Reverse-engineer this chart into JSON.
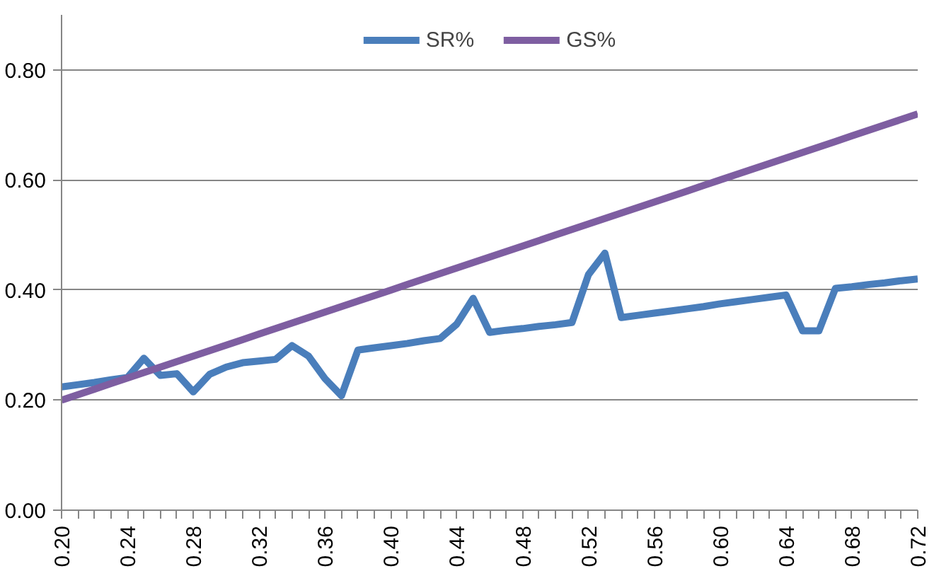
{
  "chart_data": {
    "type": "line",
    "x": [
      0.2,
      0.21,
      0.22,
      0.23,
      0.24,
      0.25,
      0.26,
      0.27,
      0.28,
      0.29,
      0.3,
      0.31,
      0.32,
      0.33,
      0.34,
      0.35,
      0.36,
      0.37,
      0.38,
      0.39,
      0.4,
      0.41,
      0.42,
      0.43,
      0.44,
      0.45,
      0.46,
      0.47,
      0.48,
      0.49,
      0.5,
      0.51,
      0.52,
      0.53,
      0.54,
      0.55,
      0.56,
      0.57,
      0.58,
      0.59,
      0.6,
      0.61,
      0.62,
      0.63,
      0.64,
      0.65,
      0.66,
      0.67,
      0.68,
      0.69,
      0.7,
      0.71,
      0.72
    ],
    "series": [
      {
        "name": "SR%",
        "color": "#4a7ebb",
        "values": [
          0.224,
          0.228,
          0.232,
          0.237,
          0.241,
          0.276,
          0.245,
          0.248,
          0.215,
          0.247,
          0.26,
          0.268,
          0.271,
          0.274,
          0.299,
          0.28,
          0.239,
          0.208,
          0.291,
          0.295,
          0.299,
          0.303,
          0.308,
          0.312,
          0.338,
          0.385,
          0.323,
          0.327,
          0.33,
          0.334,
          0.337,
          0.341,
          0.428,
          0.467,
          0.35,
          0.354,
          0.358,
          0.362,
          0.366,
          0.37,
          0.375,
          0.379,
          0.383,
          0.387,
          0.391,
          0.326,
          0.326,
          0.403,
          0.406,
          0.41,
          0.413,
          0.417,
          0.42
        ]
      },
      {
        "name": "GS%",
        "color": "#7e5ea1",
        "values": [
          0.2,
          0.21,
          0.22,
          0.23,
          0.24,
          0.25,
          0.26,
          0.27,
          0.28,
          0.29,
          0.3,
          0.31,
          0.32,
          0.33,
          0.34,
          0.35,
          0.36,
          0.37,
          0.38,
          0.39,
          0.4,
          0.41,
          0.42,
          0.43,
          0.44,
          0.45,
          0.46,
          0.47,
          0.48,
          0.49,
          0.5,
          0.51,
          0.52,
          0.53,
          0.54,
          0.55,
          0.56,
          0.57,
          0.58,
          0.59,
          0.6,
          0.61,
          0.62,
          0.63,
          0.64,
          0.65,
          0.66,
          0.67,
          0.68,
          0.69,
          0.7,
          0.71,
          0.72
        ]
      }
    ],
    "xlim": [
      0.2,
      0.72
    ],
    "xticks": [
      {
        "value": 0.2,
        "label": "0.20"
      },
      {
        "value": 0.21,
        "label": null
      },
      {
        "value": 0.22,
        "label": null
      },
      {
        "value": 0.23,
        "label": null
      },
      {
        "value": 0.24,
        "label": "0.24"
      },
      {
        "value": 0.25,
        "label": null
      },
      {
        "value": 0.26,
        "label": null
      },
      {
        "value": 0.27,
        "label": null
      },
      {
        "value": 0.28,
        "label": "0.28"
      },
      {
        "value": 0.29,
        "label": null
      },
      {
        "value": 0.3,
        "label": null
      },
      {
        "value": 0.31,
        "label": null
      },
      {
        "value": 0.32,
        "label": "0.32"
      },
      {
        "value": 0.33,
        "label": null
      },
      {
        "value": 0.34,
        "label": null
      },
      {
        "value": 0.35,
        "label": null
      },
      {
        "value": 0.36,
        "label": "0.36"
      },
      {
        "value": 0.37,
        "label": null
      },
      {
        "value": 0.38,
        "label": null
      },
      {
        "value": 0.39,
        "label": null
      },
      {
        "value": 0.4,
        "label": "0.40"
      },
      {
        "value": 0.41,
        "label": null
      },
      {
        "value": 0.42,
        "label": null
      },
      {
        "value": 0.43,
        "label": null
      },
      {
        "value": 0.44,
        "label": "0.44"
      },
      {
        "value": 0.45,
        "label": null
      },
      {
        "value": 0.46,
        "label": null
      },
      {
        "value": 0.47,
        "label": null
      },
      {
        "value": 0.48,
        "label": "0.48"
      },
      {
        "value": 0.49,
        "label": null
      },
      {
        "value": 0.5,
        "label": null
      },
      {
        "value": 0.51,
        "label": null
      },
      {
        "value": 0.52,
        "label": "0.52"
      },
      {
        "value": 0.53,
        "label": null
      },
      {
        "value": 0.54,
        "label": null
      },
      {
        "value": 0.55,
        "label": null
      },
      {
        "value": 0.56,
        "label": "0.56"
      },
      {
        "value": 0.57,
        "label": null
      },
      {
        "value": 0.58,
        "label": null
      },
      {
        "value": 0.59,
        "label": null
      },
      {
        "value": 0.6,
        "label": "0.60"
      },
      {
        "value": 0.61,
        "label": null
      },
      {
        "value": 0.62,
        "label": null
      },
      {
        "value": 0.63,
        "label": null
      },
      {
        "value": 0.64,
        "label": "0.64"
      },
      {
        "value": 0.65,
        "label": null
      },
      {
        "value": 0.66,
        "label": null
      },
      {
        "value": 0.67,
        "label": null
      },
      {
        "value": 0.68,
        "label": "0.68"
      },
      {
        "value": 0.69,
        "label": null
      },
      {
        "value": 0.7,
        "label": null
      },
      {
        "value": 0.71,
        "label": null
      },
      {
        "value": 0.72,
        "label": "0.72"
      }
    ],
    "ylim": [
      0,
      0.9
    ],
    "yticks": [
      {
        "value": 0,
        "label": "0.00"
      },
      {
        "value": 0.2,
        "label": "0.20"
      },
      {
        "value": 0.4,
        "label": "0.40"
      },
      {
        "value": 0.6,
        "label": "0.60"
      },
      {
        "value": 0.8,
        "label": "0.80"
      }
    ],
    "grid": "y",
    "legend": "top",
    "marker": "none",
    "line_style": "solid"
  }
}
